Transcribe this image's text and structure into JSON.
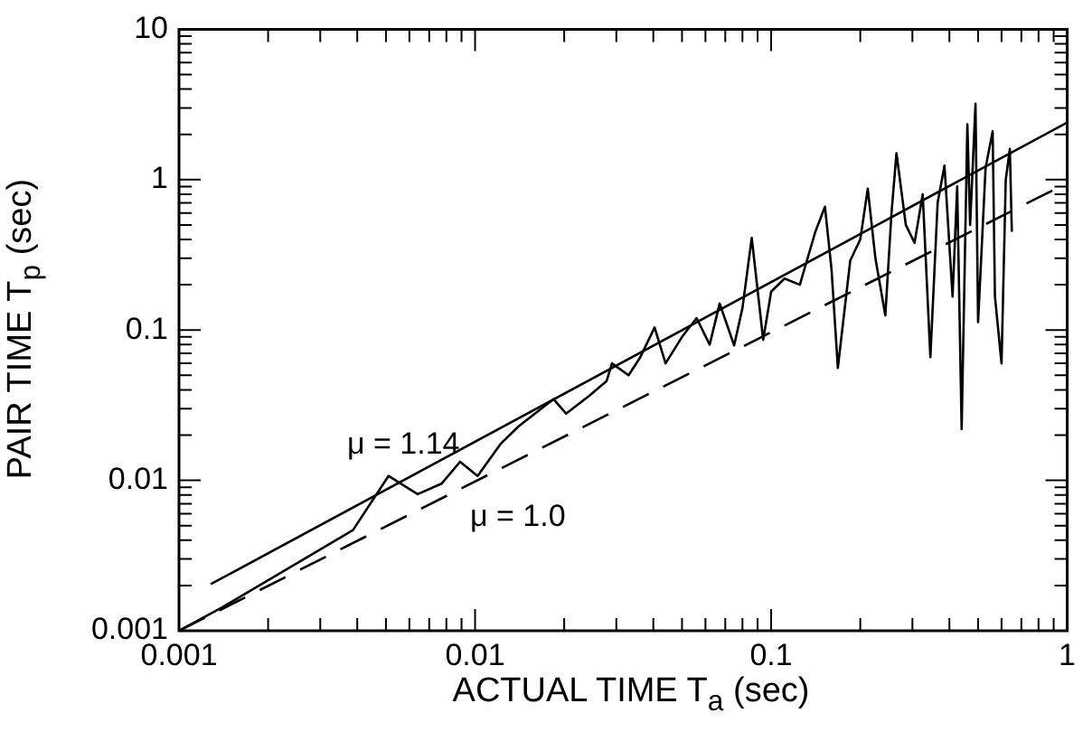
{
  "chart_data": {
    "type": "line",
    "xlabel": "ACTUAL TIME T$_{a}$ (sec)",
    "ylabel": "PAIR TIME T$_{p}$ (sec)",
    "log": "xy",
    "grid": false,
    "legend": false,
    "marker": "none",
    "xlim": [
      0.001,
      1
    ],
    "ylim": [
      0.001,
      10
    ],
    "xticks": [
      0.001,
      {
        "value": 0.002,
        "label": null
      },
      {
        "value": 0.003,
        "label": null
      },
      {
        "value": 0.004,
        "label": null
      },
      {
        "value": 0.005,
        "label": null
      },
      {
        "value": 0.006,
        "label": null
      },
      {
        "value": 0.007,
        "label": null
      },
      {
        "value": 0.008,
        "label": null
      },
      {
        "value": 0.009,
        "label": null
      },
      0.01,
      {
        "value": 0.02,
        "label": null
      },
      {
        "value": 0.03,
        "label": null
      },
      {
        "value": 0.04,
        "label": null
      },
      {
        "value": 0.05,
        "label": null
      },
      {
        "value": 0.06,
        "label": null
      },
      {
        "value": 0.07,
        "label": null
      },
      {
        "value": 0.08,
        "label": null
      },
      {
        "value": 0.09,
        "label": null
      },
      0.1,
      {
        "value": 0.2,
        "label": null
      },
      {
        "value": 0.3,
        "label": null
      },
      {
        "value": 0.4,
        "label": null
      },
      {
        "value": 0.5,
        "label": null
      },
      {
        "value": 0.6,
        "label": null
      },
      {
        "value": 0.7,
        "label": null
      },
      {
        "value": 0.8,
        "label": null
      },
      {
        "value": 0.9,
        "label": null
      },
      1
    ],
    "yticks": [
      0.001,
      {
        "value": 0.002,
        "label": null
      },
      {
        "value": 0.003,
        "label": null
      },
      {
        "value": 0.004,
        "label": null
      },
      {
        "value": 0.005,
        "label": null
      },
      {
        "value": 0.006,
        "label": null
      },
      {
        "value": 0.007,
        "label": null
      },
      {
        "value": 0.008,
        "label": null
      },
      {
        "value": 0.009,
        "label": null
      },
      0.01,
      {
        "value": 0.02,
        "label": null
      },
      {
        "value": 0.03,
        "label": null
      },
      {
        "value": 0.04,
        "label": null
      },
      {
        "value": 0.05,
        "label": null
      },
      {
        "value": 0.06,
        "label": null
      },
      {
        "value": 0.07,
        "label": null
      },
      {
        "value": 0.08,
        "label": null
      },
      {
        "value": 0.09,
        "label": null
      },
      0.1,
      {
        "value": 0.2,
        "label": null
      },
      {
        "value": 0.3,
        "label": null
      },
      {
        "value": 0.4,
        "label": null
      },
      {
        "value": 0.5,
        "label": null
      },
      {
        "value": 0.6,
        "label": null
      },
      {
        "value": 0.7,
        "label": null
      },
      {
        "value": 0.8,
        "label": null
      },
      {
        "value": 0.9,
        "label": null
      },
      1,
      {
        "value": 2,
        "label": null
      },
      {
        "value": 3,
        "label": null
      },
      {
        "value": 4,
        "label": null
      },
      {
        "value": 5,
        "label": null
      },
      {
        "value": 6,
        "label": null
      },
      {
        "value": 7,
        "label": null
      },
      {
        "value": 8,
        "label": null
      },
      {
        "value": 9,
        "label": null
      },
      10
    ],
    "series": [
      {
        "color": "#000000",
        "line_style": "solid",
        "x": [
          0.001,
          0.00139,
          0.00306,
          0.00387,
          0.0051,
          0.0064,
          0.0077,
          0.0089,
          0.0102,
          0.0122,
          0.014,
          0.0184,
          0.0203,
          0.0243,
          0.0278,
          0.029,
          0.033,
          0.036,
          0.0404,
          0.044,
          0.05,
          0.056,
          0.062,
          0.067,
          0.075,
          0.08,
          0.086,
          0.094,
          0.1,
          0.111,
          0.125,
          0.141,
          0.152,
          0.16,
          0.168,
          0.185,
          0.2,
          0.212,
          0.225,
          0.243,
          0.255,
          0.265,
          0.285,
          0.305,
          0.325,
          0.345,
          0.365,
          0.385,
          0.41,
          0.425,
          0.44,
          0.46,
          0.47,
          0.49,
          0.5,
          0.53,
          0.56,
          0.57,
          0.6,
          0.62,
          0.64,
          0.65
        ],
        "values": [
          0.001,
          0.00142,
          0.00355,
          0.00467,
          0.0107,
          0.0081,
          0.0095,
          0.0133,
          0.0107,
          0.0175,
          0.0228,
          0.0347,
          0.0278,
          0.0365,
          0.0457,
          0.06,
          0.05,
          0.065,
          0.104,
          0.06,
          0.09,
          0.12,
          0.08,
          0.15,
          0.079,
          0.14,
          0.41,
          0.086,
          0.18,
          0.22,
          0.2,
          0.45,
          0.66,
          0.25,
          0.056,
          0.29,
          0.4,
          0.87,
          0.3,
          0.125,
          0.6,
          1.5,
          0.5,
          0.38,
          0.8,
          0.066,
          0.7,
          1.24,
          0.167,
          0.9,
          0.022,
          2.33,
          0.5,
          3.2,
          0.113,
          1.2,
          2.1,
          0.167,
          0.06,
          1.0,
          1.6,
          0.45
        ]
      },
      {
        "color": "#000000",
        "line_style": "solid",
        "x": [
          0.00128,
          1
        ],
        "values": [
          0.00204,
          2.4
        ]
      },
      {
        "color": "#000000",
        "line_style": "dashed",
        "x": [
          0.001,
          1
        ],
        "values": [
          0.001,
          0.95
        ]
      }
    ],
    "annotations": [
      "μ = 1.14",
      "μ = 1.0"
    ]
  }
}
